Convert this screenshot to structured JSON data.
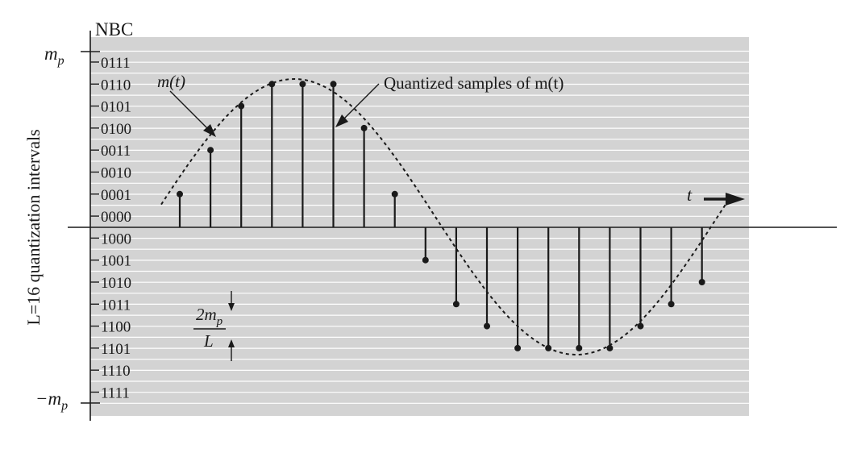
{
  "figure": {
    "nbc_header": "NBC",
    "y_axis_title": "L=16 quantization intervals",
    "mp_top_label": "m",
    "mp_top_sub": "p",
    "mp_bottom_label": "−m",
    "mp_bottom_sub": "p",
    "curve_label": "m(t)",
    "samples_label": "Quantized samples of m(t)",
    "time_label": "t",
    "step_numerator": "2m",
    "step_numerator_sub": "p",
    "step_denominator": "L",
    "level_codes": [
      "0111",
      "0110",
      "0101",
      "0100",
      "0011",
      "0010",
      "0001",
      "0000",
      "1000",
      "1001",
      "1010",
      "1011",
      "1100",
      "1101",
      "1110",
      "1111"
    ],
    "samples": [
      {
        "level": "0001"
      },
      {
        "level": "0011"
      },
      {
        "level": "0101"
      },
      {
        "level": "0110"
      },
      {
        "level": "0110"
      },
      {
        "level": "0110"
      },
      {
        "level": "0100"
      },
      {
        "level": "0001"
      },
      {
        "level": "1001"
      },
      {
        "level": "1011"
      },
      {
        "level": "1100"
      },
      {
        "level": "1101"
      },
      {
        "level": "1101"
      },
      {
        "level": "1101"
      },
      {
        "level": "1101"
      },
      {
        "level": "1100"
      },
      {
        "level": "1011"
      },
      {
        "level": "1010"
      }
    ],
    "colors": {
      "background_panel": "#d3d3d3",
      "grid": "#ffffff",
      "ink": "#1a1a1a"
    }
  }
}
